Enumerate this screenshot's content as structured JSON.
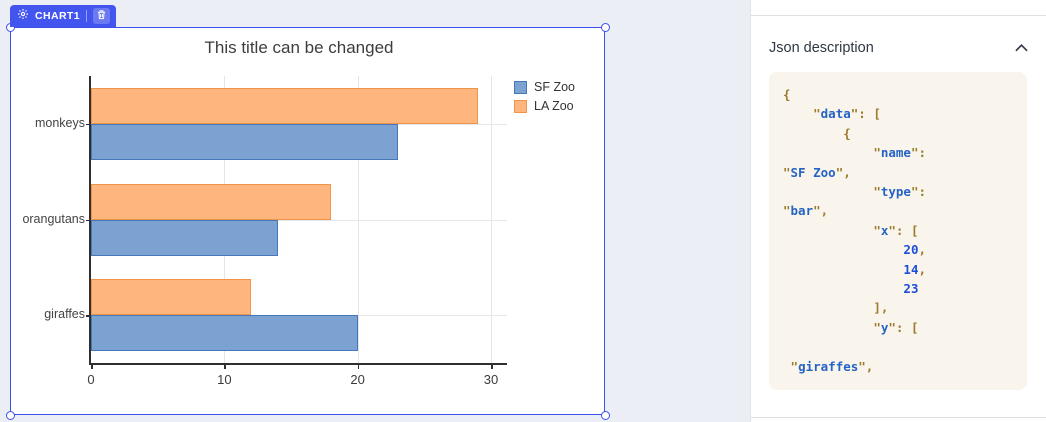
{
  "colors": {
    "accent_badge": "#4355ef",
    "selection_border": "#3d4ff0",
    "canvas_background": "#eceef5",
    "code_background": "#f9f5ec",
    "code_punctuation": "#9a7b2d",
    "code_string": "#2563c4",
    "code_number": "#1d4ed8"
  },
  "canvas": {
    "badge": {
      "label": "CHART1",
      "gear_icon": "gear-icon",
      "trash_icon": "trash-icon"
    }
  },
  "chart_data": {
    "type": "bar",
    "orientation": "horizontal",
    "title": "This title can be changed",
    "categories": [
      "monkeys",
      "orangutans",
      "giraffes"
    ],
    "series": [
      {
        "name": "SF Zoo",
        "values": [
          23,
          14,
          20
        ],
        "fill": "#7ba2d1",
        "border": "#4677b8"
      },
      {
        "name": "LA Zoo",
        "values": [
          29,
          18,
          12
        ],
        "fill": "#ffb67e",
        "border": "#ef9449"
      }
    ],
    "bar_order_top_to_bottom_per_category": [
      "LA Zoo",
      "SF Zoo"
    ],
    "xlim": [
      0,
      31.2
    ],
    "xticks": [
      0,
      10,
      20,
      30
    ],
    "grid": true,
    "legend_position": "top-right",
    "xlabel": "",
    "ylabel": ""
  },
  "panel": {
    "header": "Json description",
    "collapse_icon": "chevron-up-icon",
    "code_lines": [
      [
        [
          "c-p",
          "{"
        ]
      ],
      [
        [
          "c-t",
          "    "
        ],
        [
          "c-p",
          "\""
        ],
        [
          "c-s",
          "data"
        ],
        [
          "c-p",
          "\": ["
        ]
      ],
      [
        [
          "c-t",
          "        "
        ],
        [
          "c-p",
          "{"
        ]
      ],
      [
        [
          "c-t",
          "            "
        ],
        [
          "c-p",
          "\""
        ],
        [
          "c-s",
          "name"
        ],
        [
          "c-p",
          "\":"
        ]
      ],
      [
        [
          "c-p",
          "\""
        ],
        [
          "c-s",
          "SF Zoo"
        ],
        [
          "c-p",
          "\","
        ]
      ],
      [
        [
          "c-t",
          "            "
        ],
        [
          "c-p",
          "\""
        ],
        [
          "c-s",
          "type"
        ],
        [
          "c-p",
          "\":"
        ]
      ],
      [
        [
          "c-p",
          "\""
        ],
        [
          "c-s",
          "bar"
        ],
        [
          "c-p",
          "\","
        ]
      ],
      [
        [
          "c-t",
          "            "
        ],
        [
          "c-p",
          "\""
        ],
        [
          "c-s",
          "x"
        ],
        [
          "c-p",
          "\": ["
        ]
      ],
      [
        [
          "c-t",
          "                "
        ],
        [
          "c-n",
          "20"
        ],
        [
          "c-p",
          ","
        ]
      ],
      [
        [
          "c-t",
          "                "
        ],
        [
          "c-n",
          "14"
        ],
        [
          "c-p",
          ","
        ]
      ],
      [
        [
          "c-t",
          "                "
        ],
        [
          "c-n",
          "23"
        ]
      ],
      [
        [
          "c-t",
          "            "
        ],
        [
          "c-p",
          "],"
        ]
      ],
      [
        [
          "c-t",
          "            "
        ],
        [
          "c-p",
          "\""
        ],
        [
          "c-s",
          "y"
        ],
        [
          "c-p",
          "\": ["
        ]
      ],
      [
        [
          "c-t",
          ""
        ]
      ],
      [
        [
          "c-t",
          " "
        ],
        [
          "c-p",
          "\""
        ],
        [
          "c-s",
          "giraffes"
        ],
        [
          "c-p",
          "\","
        ]
      ]
    ]
  }
}
